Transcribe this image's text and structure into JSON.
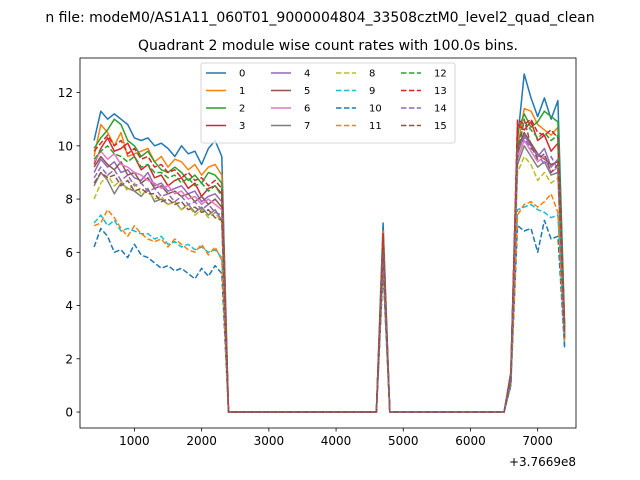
{
  "figure": {
    "suptitle": "n file: modeM0/AS1A11_060T01_9000004804_33508cztM0_level2_quad_clean",
    "title": "Quadrant 2 module wise count rates with 100.0s bins.",
    "offset_label": "+3.7669e8"
  },
  "chart_data": {
    "type": "line",
    "title": "Quadrant 2 module wise count rates with 100.0s bins.",
    "xlabel": "",
    "ylabel": "",
    "x_offset": 376690000,
    "xlim": [
      190,
      7570
    ],
    "ylim": [
      -0.6,
      13.3
    ],
    "xticks": [
      1000,
      2000,
      3000,
      4000,
      5000,
      6000,
      7000
    ],
    "xtick_labels": [
      "1000",
      "2000",
      "3000",
      "4000",
      "5000",
      "6000",
      "7000"
    ],
    "yticks": [
      0,
      2,
      4,
      6,
      8,
      10,
      12
    ],
    "ytick_labels": [
      "0",
      "2",
      "4",
      "6",
      "8",
      "10",
      "12"
    ],
    "grid": false,
    "legend": {
      "placement": "upper center",
      "columns": 4
    },
    "x": [
      400,
      500,
      600,
      700,
      800,
      900,
      1000,
      1100,
      1200,
      1300,
      1400,
      1500,
      1600,
      1700,
      1800,
      1900,
      2000,
      2100,
      2200,
      2300,
      2400,
      2500,
      2600,
      2700,
      2800,
      2900,
      3000,
      3100,
      3200,
      3300,
      3400,
      3500,
      3600,
      3700,
      3800,
      3900,
      4000,
      4100,
      4200,
      4300,
      4400,
      4500,
      4600,
      4700,
      4800,
      4900,
      5000,
      5100,
      5200,
      5300,
      5400,
      5500,
      5600,
      5700,
      5800,
      5900,
      6000,
      6100,
      6200,
      6300,
      6400,
      6500,
      6600,
      6700,
      6800,
      6900,
      7000,
      7100,
      7200,
      7300,
      7400
    ],
    "series": [
      {
        "name": "0",
        "color": "#1f77b4",
        "dash": false,
        "values": [
          10.2,
          11.3,
          11.0,
          11.2,
          11.0,
          10.8,
          10.3,
          10.2,
          10.3,
          10.0,
          10.1,
          9.9,
          9.6,
          10.0,
          9.7,
          9.8,
          9.3,
          9.9,
          10.2,
          9.6,
          0,
          0,
          0,
          0,
          0,
          0,
          0,
          0,
          0,
          0,
          0,
          0,
          0,
          0,
          0,
          0,
          0,
          0,
          0,
          0,
          0,
          0,
          0,
          7.1,
          0,
          0,
          0,
          0,
          0,
          0,
          0,
          0,
          0,
          0,
          0,
          0,
          0,
          0,
          0,
          0,
          0,
          0,
          1.5,
          10.2,
          12.7,
          11.8,
          11.1,
          11.8,
          11.0,
          11.7,
          3.3
        ]
      },
      {
        "name": "1",
        "color": "#ff7f0e",
        "dash": false,
        "values": [
          9.6,
          10.8,
          10.5,
          10.0,
          10.5,
          9.6,
          9.7,
          9.8,
          9.9,
          9.4,
          9.6,
          9.2,
          9.5,
          9.4,
          9.1,
          9.3,
          8.9,
          9.2,
          9.3,
          8.9,
          0,
          0,
          0,
          0,
          0,
          0,
          0,
          0,
          0,
          0,
          0,
          0,
          0,
          0,
          0,
          0,
          0,
          0,
          0,
          0,
          0,
          0,
          0,
          6.8,
          0,
          0,
          0,
          0,
          0,
          0,
          0,
          0,
          0,
          0,
          0,
          0,
          0,
          0,
          0,
          0,
          0,
          0,
          1.4,
          9.9,
          11.4,
          11.3,
          10.8,
          10.6,
          10.4,
          10.7,
          3.1
        ]
      },
      {
        "name": "2",
        "color": "#2ca02c",
        "dash": false,
        "values": [
          9.9,
          10.3,
          10.6,
          11.0,
          10.8,
          10.2,
          10.0,
          9.6,
          9.8,
          9.4,
          9.1,
          9.0,
          9.2,
          9.0,
          8.7,
          8.9,
          8.6,
          9.0,
          8.9,
          8.6,
          0,
          0,
          0,
          0,
          0,
          0,
          0,
          0,
          0,
          0,
          0,
          0,
          0,
          0,
          0,
          0,
          0,
          0,
          0,
          0,
          0,
          0,
          0,
          6.6,
          0,
          0,
          0,
          0,
          0,
          0,
          0,
          0,
          0,
          0,
          0,
          0,
          0,
          0,
          0,
          0,
          0,
          0,
          1.4,
          10.5,
          11.2,
          10.7,
          10.9,
          11.3,
          11.1,
          10.9,
          3.2
        ]
      },
      {
        "name": "3",
        "color": "#d62728",
        "dash": false,
        "values": [
          9.3,
          9.9,
          10.3,
          9.8,
          9.9,
          10.1,
          9.6,
          9.1,
          9.3,
          8.8,
          8.9,
          8.5,
          8.7,
          8.8,
          8.4,
          8.6,
          8.1,
          8.4,
          8.5,
          8.2,
          0,
          0,
          0,
          0,
          0,
          0,
          0,
          0,
          0,
          0,
          0,
          0,
          0,
          0,
          0,
          0,
          0,
          0,
          0,
          0,
          0,
          0,
          0,
          6.4,
          0,
          0,
          0,
          0,
          0,
          0,
          0,
          0,
          0,
          0,
          0,
          0,
          0,
          0,
          0,
          0,
          0,
          0,
          1.3,
          10.8,
          10.6,
          10.9,
          10.2,
          10.4,
          9.8,
          10.1,
          3.0
        ]
      },
      {
        "name": "4",
        "color": "#9467bd",
        "dash": false,
        "values": [
          9.0,
          9.5,
          9.2,
          9.4,
          9.0,
          9.1,
          8.8,
          8.7,
          9.0,
          8.5,
          8.6,
          8.3,
          8.4,
          8.5,
          8.2,
          8.3,
          7.9,
          8.1,
          8.2,
          7.9,
          0,
          0,
          0,
          0,
          0,
          0,
          0,
          0,
          0,
          0,
          0,
          0,
          0,
          0,
          0,
          0,
          0,
          0,
          0,
          0,
          0,
          0,
          0,
          6.2,
          0,
          0,
          0,
          0,
          0,
          0,
          0,
          0,
          0,
          0,
          0,
          0,
          0,
          0,
          0,
          0,
          0,
          0,
          1.3,
          9.7,
          10.4,
          10.0,
          9.6,
          9.9,
          9.2,
          9.5,
          2.9
        ]
      },
      {
        "name": "5",
        "color": "#8c564b",
        "dash": false,
        "values": [
          9.2,
          9.6,
          9.3,
          9.1,
          9.4,
          8.9,
          9.0,
          8.6,
          8.8,
          8.4,
          8.5,
          8.2,
          8.3,
          8.1,
          8.2,
          7.9,
          8.1,
          7.8,
          8.0,
          7.7,
          0,
          0,
          0,
          0,
          0,
          0,
          0,
          0,
          0,
          0,
          0,
          0,
          0,
          0,
          0,
          0,
          0,
          0,
          0,
          0,
          0,
          0,
          0,
          6.3,
          0,
          0,
          0,
          0,
          0,
          0,
          0,
          0,
          0,
          0,
          0,
          0,
          0,
          0,
          0,
          0,
          0,
          0,
          1.3,
          9.9,
          10.5,
          10.1,
          9.7,
          9.5,
          9.3,
          9.4,
          2.9
        ]
      },
      {
        "name": "6",
        "color": "#e377c2",
        "dash": false,
        "values": [
          9.4,
          9.8,
          9.5,
          9.7,
          9.3,
          9.2,
          9.0,
          8.9,
          8.7,
          8.6,
          8.4,
          8.5,
          8.2,
          8.3,
          8.0,
          8.1,
          7.8,
          8.0,
          7.8,
          7.6,
          0,
          0,
          0,
          0,
          0,
          0,
          0,
          0,
          0,
          0,
          0,
          0,
          0,
          0,
          0,
          0,
          0,
          0,
          0,
          0,
          0,
          0,
          0,
          6.1,
          0,
          0,
          0,
          0,
          0,
          0,
          0,
          0,
          0,
          0,
          0,
          0,
          0,
          0,
          0,
          0,
          0,
          0,
          1.2,
          9.5,
          10.2,
          9.8,
          9.4,
          9.6,
          9.0,
          9.2,
          2.8
        ]
      },
      {
        "name": "7",
        "color": "#7f7f7f",
        "dash": false,
        "values": [
          8.5,
          9.0,
          8.7,
          8.2,
          8.6,
          8.4,
          8.3,
          8.1,
          8.4,
          7.9,
          8.0,
          7.8,
          7.9,
          7.6,
          7.8,
          7.5,
          7.7,
          7.4,
          7.6,
          7.2,
          0,
          0,
          0,
          0,
          0,
          0,
          0,
          0,
          0,
          0,
          0,
          0,
          0,
          0,
          0,
          0,
          0,
          0,
          0,
          0,
          0,
          0,
          0,
          6.0,
          0,
          0,
          0,
          0,
          0,
          0,
          0,
          0,
          0,
          0,
          0,
          0,
          0,
          0,
          0,
          0,
          0,
          0,
          1.2,
          9.3,
          10.0,
          9.6,
          9.2,
          9.4,
          8.9,
          9.0,
          2.7
        ]
      },
      {
        "name": "8",
        "color": "#bcbd22",
        "dash": true,
        "values": [
          8.0,
          8.6,
          8.9,
          8.5,
          8.7,
          8.3,
          8.6,
          8.2,
          8.3,
          8.0,
          8.1,
          7.8,
          7.9,
          7.6,
          7.8,
          7.4,
          7.6,
          7.3,
          7.5,
          7.1,
          0,
          0,
          0,
          0,
          0,
          0,
          0,
          0,
          0,
          0,
          0,
          0,
          0,
          0,
          0,
          0,
          0,
          0,
          0,
          0,
          0,
          0,
          0,
          5.9,
          0,
          0,
          0,
          0,
          0,
          0,
          0,
          0,
          0,
          0,
          0,
          0,
          0,
          0,
          0,
          0,
          0,
          0,
          1.2,
          9.0,
          9.6,
          9.3,
          8.7,
          9.0,
          8.6,
          8.8,
          2.7
        ]
      },
      {
        "name": "9",
        "color": "#17becf",
        "dash": true,
        "values": [
          7.1,
          7.4,
          7.0,
          7.2,
          6.8,
          6.9,
          6.8,
          6.7,
          6.7,
          6.5,
          6.6,
          6.3,
          6.4,
          6.2,
          6.3,
          6.1,
          6.2,
          6.0,
          6.1,
          5.8,
          0,
          0,
          0,
          0,
          0,
          0,
          0,
          0,
          0,
          0,
          0,
          0,
          0,
          0,
          0,
          0,
          0,
          0,
          0,
          0,
          0,
          0,
          0,
          5.5,
          0,
          0,
          0,
          0,
          0,
          0,
          0,
          0,
          0,
          0,
          0,
          0,
          0,
          0,
          0,
          0,
          0,
          0,
          1.0,
          7.6,
          7.7,
          7.8,
          7.6,
          7.5,
          7.3,
          7.4,
          2.5
        ]
      },
      {
        "name": "10",
        "color": "#1f77b4",
        "dash": true,
        "values": [
          6.2,
          6.9,
          6.6,
          6.0,
          6.1,
          5.8,
          6.3,
          5.9,
          5.8,
          5.6,
          5.4,
          5.5,
          5.3,
          5.4,
          5.2,
          5.0,
          5.4,
          5.1,
          5.5,
          5.2,
          0,
          0,
          0,
          0,
          0,
          0,
          0,
          0,
          0,
          0,
          0,
          0,
          0,
          0,
          0,
          0,
          0,
          0,
          0,
          0,
          0,
          0,
          0,
          5.3,
          0,
          0,
          0,
          0,
          0,
          0,
          0,
          0,
          0,
          0,
          0,
          0,
          0,
          0,
          0,
          0,
          0,
          0,
          1.0,
          7.0,
          6.8,
          6.9,
          6.0,
          7.2,
          6.5,
          6.6,
          2.4
        ]
      },
      {
        "name": "11",
        "color": "#ff7f0e",
        "dash": true,
        "values": [
          7.0,
          7.1,
          7.6,
          7.3,
          6.9,
          6.6,
          7.0,
          6.7,
          6.5,
          6.4,
          6.5,
          6.2,
          6.5,
          6.3,
          6.1,
          6.0,
          6.3,
          5.9,
          6.2,
          5.7,
          0,
          0,
          0,
          0,
          0,
          0,
          0,
          0,
          0,
          0,
          0,
          0,
          0,
          0,
          0,
          0,
          0,
          0,
          0,
          0,
          0,
          0,
          0,
          5.6,
          0,
          0,
          0,
          0,
          0,
          0,
          0,
          0,
          0,
          0,
          0,
          0,
          0,
          0,
          0,
          0,
          0,
          0,
          1.1,
          7.4,
          7.8,
          7.9,
          7.7,
          7.9,
          8.2,
          7.5,
          2.6
        ]
      },
      {
        "name": "12",
        "color": "#2ca02c",
        "dash": true,
        "values": [
          9.5,
          9.8,
          10.0,
          9.7,
          9.6,
          9.4,
          9.6,
          9.2,
          9.3,
          9.0,
          9.0,
          8.8,
          8.9,
          8.6,
          8.8,
          8.5,
          8.6,
          8.3,
          8.5,
          8.1,
          0,
          0,
          0,
          0,
          0,
          0,
          0,
          0,
          0,
          0,
          0,
          0,
          0,
          0,
          0,
          0,
          0,
          0,
          0,
          0,
          0,
          0,
          0,
          6.6,
          0,
          0,
          0,
          0,
          0,
          0,
          0,
          0,
          0,
          0,
          0,
          0,
          0,
          0,
          0,
          0,
          0,
          0,
          1.3,
          10.0,
          10.9,
          10.6,
          10.3,
          10.5,
          10.2,
          10.4,
          3.1
        ]
      },
      {
        "name": "13",
        "color": "#d62728",
        "dash": true,
        "values": [
          9.8,
          10.1,
          10.4,
          10.0,
          10.2,
          9.7,
          9.9,
          9.5,
          9.6,
          9.2,
          9.3,
          9.0,
          9.1,
          8.8,
          9.0,
          8.7,
          8.8,
          8.5,
          8.7,
          8.4,
          0,
          0,
          0,
          0,
          0,
          0,
          0,
          0,
          0,
          0,
          0,
          0,
          0,
          0,
          0,
          0,
          0,
          0,
          0,
          0,
          0,
          0,
          0,
          6.7,
          0,
          0,
          0,
          0,
          0,
          0,
          0,
          0,
          0,
          0,
          0,
          0,
          0,
          0,
          0,
          0,
          0,
          0,
          1.4,
          11.0,
          10.8,
          11.0,
          10.5,
          10.4,
          10.6,
          10.3,
          3.2
        ]
      },
      {
        "name": "14",
        "color": "#9467bd",
        "dash": true,
        "values": [
          8.8,
          9.2,
          8.9,
          9.1,
          8.7,
          8.9,
          8.5,
          8.6,
          8.3,
          8.4,
          8.1,
          8.2,
          7.9,
          8.1,
          7.8,
          7.9,
          7.6,
          7.8,
          7.5,
          7.4,
          0,
          0,
          0,
          0,
          0,
          0,
          0,
          0,
          0,
          0,
          0,
          0,
          0,
          0,
          0,
          0,
          0,
          0,
          0,
          0,
          0,
          0,
          0,
          6.0,
          0,
          0,
          0,
          0,
          0,
          0,
          0,
          0,
          0,
          0,
          0,
          0,
          0,
          0,
          0,
          0,
          0,
          0,
          1.2,
          9.8,
          10.3,
          9.9,
          9.7,
          9.3,
          9.6,
          9.1,
          2.8
        ]
      },
      {
        "name": "15",
        "color": "#8c564b",
        "dash": true,
        "values": [
          8.6,
          9.0,
          8.8,
          8.9,
          8.5,
          8.7,
          8.3,
          8.4,
          8.2,
          8.2,
          7.9,
          8.0,
          7.8,
          7.9,
          7.6,
          7.7,
          7.5,
          7.6,
          7.3,
          7.2,
          0,
          0,
          0,
          0,
          0,
          0,
          0,
          0,
          0,
          0,
          0,
          0,
          0,
          0,
          0,
          0,
          0,
          0,
          0,
          0,
          0,
          0,
          0,
          6.1,
          0,
          0,
          0,
          0,
          0,
          0,
          0,
          0,
          0,
          0,
          0,
          0,
          0,
          0,
          0,
          0,
          0,
          0,
          1.2,
          9.6,
          11.0,
          10.0,
          9.5,
          9.7,
          9.0,
          9.3,
          2.8
        ]
      }
    ]
  }
}
